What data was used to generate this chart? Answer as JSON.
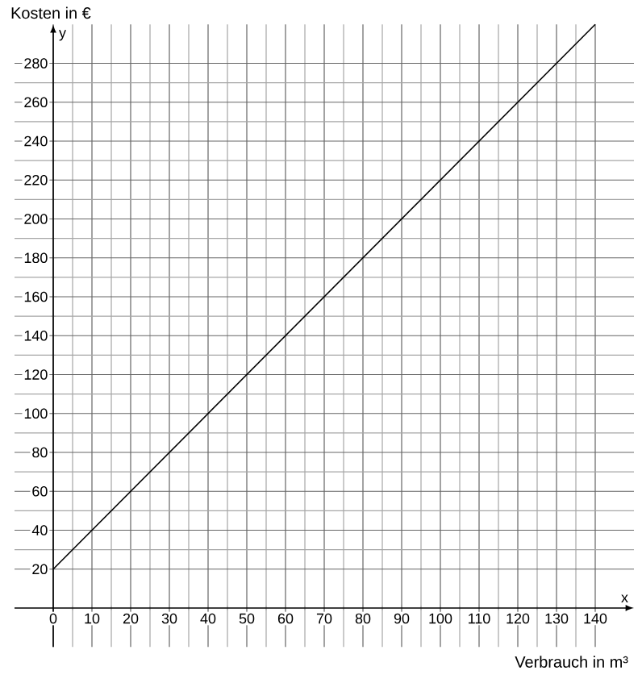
{
  "chart_data": {
    "type": "line",
    "xlabel": "Verbrauch in m³",
    "ylabel": "Kosten in €",
    "annotations": [
      "x",
      "y"
    ],
    "x": [
      0,
      140
    ],
    "values": [
      20,
      300
    ],
    "color": "#000000",
    "line_style": "solid",
    "xlim": [
      -10,
      150
    ],
    "ylim": [
      -20,
      300
    ],
    "xticks": [
      0,
      10,
      20,
      30,
      40,
      50,
      60,
      70,
      80,
      90,
      100,
      110,
      120,
      130,
      140
    ],
    "yticks": [
      20,
      40,
      60,
      80,
      100,
      120,
      140,
      160,
      180,
      200,
      220,
      240,
      260,
      280
    ],
    "grid": true
  }
}
